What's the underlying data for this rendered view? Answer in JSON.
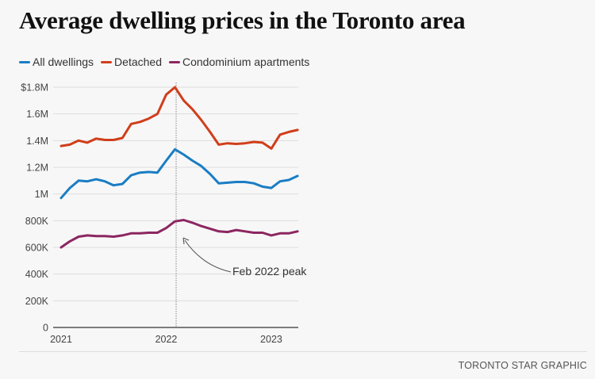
{
  "chart_data": {
    "type": "line",
    "title": "Average dwelling prices in the Toronto area",
    "xlabel": "",
    "ylabel": "",
    "x": [
      "Jan 2021",
      "Feb 2021",
      "Mar 2021",
      "Apr 2021",
      "May 2021",
      "Jun 2021",
      "Jul 2021",
      "Aug 2021",
      "Sep 2021",
      "Oct 2021",
      "Nov 2021",
      "Dec 2021",
      "Jan 2022",
      "Feb 2022",
      "Mar 2022",
      "Apr 2022",
      "May 2022",
      "Jun 2022",
      "Jul 2022",
      "Aug 2022",
      "Sep 2022",
      "Oct 2022",
      "Nov 2022",
      "Dec 2022",
      "Jan 2023",
      "Feb 2023",
      "Mar 2023",
      "Apr 2023"
    ],
    "x_ticks": [
      {
        "label": "2021",
        "index": 0
      },
      {
        "label": "2022",
        "index": 12
      },
      {
        "label": "2023",
        "index": 24
      }
    ],
    "ylim": [
      0,
      1800000
    ],
    "y_ticks": [
      {
        "value": 0,
        "label": "0"
      },
      {
        "value": 200000,
        "label": "200K"
      },
      {
        "value": 400000,
        "label": "400K"
      },
      {
        "value": 600000,
        "label": "600K"
      },
      {
        "value": 800000,
        "label": "800K"
      },
      {
        "value": 1000000,
        "label": "1M"
      },
      {
        "value": 1200000,
        "label": "1.2M"
      },
      {
        "value": 1400000,
        "label": "1.4M"
      },
      {
        "value": 1600000,
        "label": "1.6M"
      },
      {
        "value": 1800000,
        "label": "$1.8M"
      }
    ],
    "grid": true,
    "legend": "top-left",
    "series": [
      {
        "name": "All dwellings",
        "color": "#1a7dc4",
        "values": [
          970000,
          1045000,
          1100000,
          1095000,
          1110000,
          1095000,
          1065000,
          1075000,
          1140000,
          1160000,
          1165000,
          1160000,
          1250000,
          1335000,
          1295000,
          1250000,
          1210000,
          1150000,
          1080000,
          1085000,
          1090000,
          1090000,
          1080000,
          1055000,
          1045000,
          1095000,
          1105000,
          1135000
        ]
      },
      {
        "name": "Detached",
        "color": "#d03e1a",
        "values": [
          1360000,
          1370000,
          1400000,
          1385000,
          1415000,
          1405000,
          1405000,
          1420000,
          1525000,
          1540000,
          1565000,
          1600000,
          1745000,
          1800000,
          1700000,
          1635000,
          1555000,
          1465000,
          1370000,
          1380000,
          1375000,
          1380000,
          1390000,
          1385000,
          1340000,
          1445000,
          1465000,
          1480000
        ]
      },
      {
        "name": "Condominium apartments",
        "color": "#8c2660",
        "values": [
          600000,
          645000,
          680000,
          690000,
          685000,
          685000,
          680000,
          690000,
          705000,
          705000,
          710000,
          710000,
          745000,
          795000,
          805000,
          785000,
          760000,
          740000,
          720000,
          715000,
          730000,
          720000,
          710000,
          710000,
          690000,
          705000,
          705000,
          720000
        ]
      }
    ],
    "annotations": [
      {
        "text": "Feb 2022 peak",
        "x": "Feb 2022",
        "type": "vertical-dotted-line-with-arrow"
      }
    ]
  },
  "footer": {
    "credit": "TORONTO STAR GRAPHIC"
  }
}
